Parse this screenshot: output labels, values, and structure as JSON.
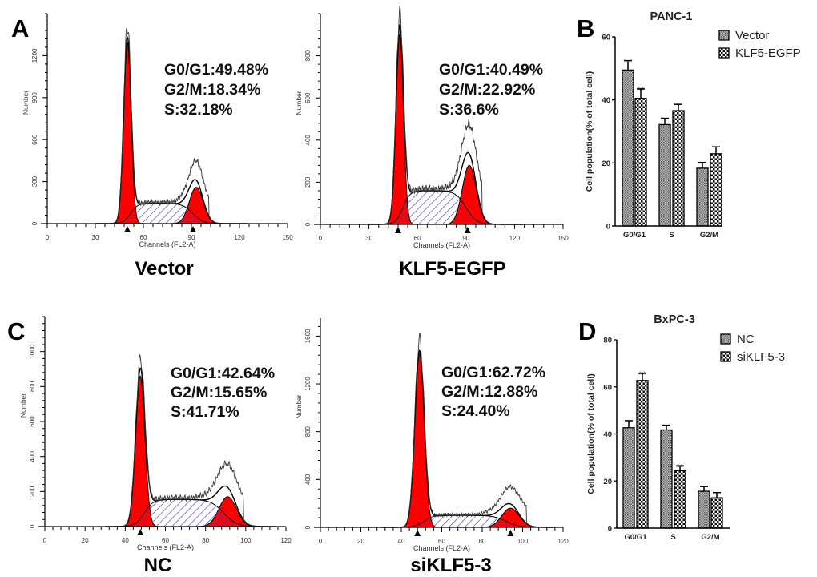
{
  "panel_letters": [
    "A",
    "B",
    "C",
    "D"
  ],
  "chart_data": [
    {
      "type": "area",
      "panel": "A",
      "title": "Vector",
      "xlabel": "Channels (FL2-A)",
      "ylabel": "Number",
      "xlim": [
        0,
        150
      ],
      "ylim": [
        0,
        1500
      ],
      "xticks": [
        0,
        30,
        60,
        90,
        120,
        150
      ],
      "yticks": [
        0,
        300,
        600,
        900,
        1200
      ],
      "annotations": [
        "G0/G1:49.48%",
        "G2/M:18.34%",
        "S:32.18%"
      ],
      "peaks": {
        "g1_channel": 50,
        "g1_height": 1290,
        "g2_channel": 93,
        "g2_height": 260,
        "s_height": 145
      },
      "markers": [
        50,
        91
      ]
    },
    {
      "type": "area",
      "panel": "A",
      "title": "KLF5-EGFP",
      "xlabel": "Channels (FL2-A)",
      "ylabel": "Number",
      "xlim": [
        0,
        150
      ],
      "ylim": [
        0,
        1000
      ],
      "xticks": [
        0,
        30,
        60,
        90,
        120,
        150
      ],
      "yticks": [
        0,
        200,
        400,
        600,
        800
      ],
      "annotations": [
        "G0/G1:40.49%",
        "G2/M:22.92%",
        "S:36.6%"
      ],
      "peaks": {
        "g1_channel": 49,
        "g1_height": 900,
        "g2_channel": 92,
        "g2_height": 280,
        "s_height": 160
      },
      "markers": [
        48,
        91
      ]
    },
    {
      "type": "area",
      "panel": "C",
      "title": "NC",
      "xlabel": "Channels (FL2-A)",
      "ylabel": "Number",
      "xlim": [
        0,
        120
      ],
      "ylim": [
        0,
        1200
      ],
      "xticks": [
        0,
        20,
        40,
        60,
        80,
        100,
        120
      ],
      "yticks": [
        0,
        200,
        400,
        600,
        800,
        1000
      ],
      "annotations": [
        "G0/G1:42.64%",
        "G2/M:15.65%",
        "S:41.71%"
      ],
      "peaks": {
        "g1_channel": 47.5,
        "g1_height": 860,
        "g2_channel": 91,
        "g2_height": 170,
        "s_height": 155
      },
      "markers": [
        47.5
      ]
    },
    {
      "type": "area",
      "panel": "C",
      "title": "siKLF5-3",
      "xlabel": "Channels (FL2-A)",
      "ylabel": "Number",
      "xlim": [
        0,
        120
      ],
      "ylim": [
        0,
        1750
      ],
      "xticks": [
        0,
        20,
        40,
        60,
        80,
        100,
        120
      ],
      "yticks": [
        0,
        400,
        800,
        1200,
        1600
      ],
      "annotations": [
        "G0/G1:62.72%",
        "G2/M:12.88%",
        "S:24.40%"
      ],
      "peaks": {
        "g1_channel": 49,
        "g1_height": 1450,
        "g2_channel": 94,
        "g2_height": 160,
        "s_height": 100
      },
      "markers": [
        48,
        94
      ]
    },
    {
      "type": "bar",
      "panel": "B",
      "title": "PANC-1",
      "ylabel": "Cell population(% of total cell)",
      "categories": [
        "G0/G1",
        "S",
        "G2/M"
      ],
      "ylim": [
        0,
        60
      ],
      "yticks": [
        0,
        20,
        40,
        60
      ],
      "legend": "top-right",
      "series": [
        {
          "name": "Vector",
          "values": [
            49.48,
            32.18,
            18.34
          ],
          "errors": [
            3,
            2,
            1.8
          ],
          "sig": [
            "",
            "",
            ""
          ]
        },
        {
          "name": "KLF5-EGFP",
          "values": [
            40.49,
            36.6,
            22.92
          ],
          "errors": [
            3,
            2,
            2.2
          ],
          "sig": [
            "**",
            "",
            ""
          ]
        }
      ]
    },
    {
      "type": "bar",
      "panel": "D",
      "title": "BxPC-3",
      "ylabel": "Cell population(% of total cell)",
      "categories": [
        "G0/G1",
        "S",
        "G2/M"
      ],
      "ylim": [
        0,
        80
      ],
      "yticks": [
        0,
        20,
        40,
        60,
        80
      ],
      "legend": "top-right",
      "series": [
        {
          "name": "NC",
          "values": [
            42.64,
            41.71,
            15.65
          ],
          "errors": [
            3,
            2,
            2
          ],
          "sig": [
            "",
            "",
            ""
          ]
        },
        {
          "name": "siKLF5-3",
          "values": [
            62.72,
            24.4,
            12.88
          ],
          "errors": [
            3,
            2,
            2.2
          ],
          "sig": [
            "**",
            "**",
            ""
          ]
        }
      ]
    }
  ],
  "colors": {
    "phase_fill": "#ff0000",
    "s_hatch": "#3b3bd8",
    "line": "#000000"
  }
}
